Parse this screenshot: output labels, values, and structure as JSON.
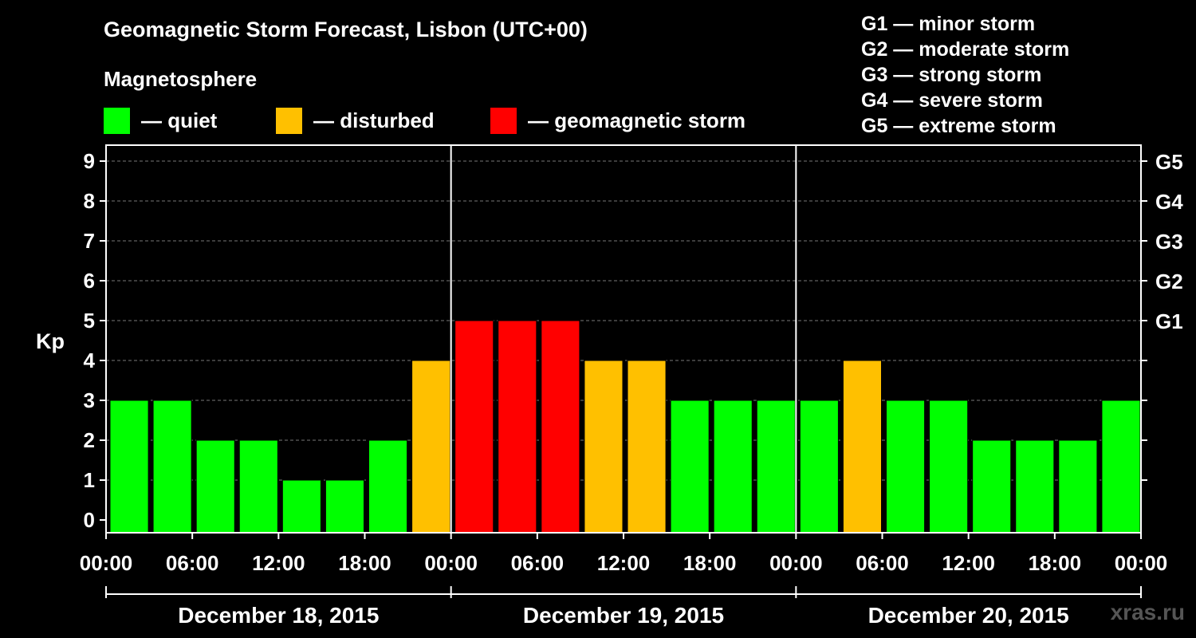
{
  "chart_data": {
    "type": "bar",
    "title": "Geomagnetic Storm Forecast, Lisbon (UTC+00)",
    "subtitle": "Magnetosphere",
    "ylabel": "Kp",
    "ylim": [
      0,
      9
    ],
    "yticks": [
      0,
      1,
      2,
      3,
      4,
      5,
      6,
      7,
      8,
      9
    ],
    "right_ticks": [
      {
        "kp": 5,
        "label": "G1"
      },
      {
        "kp": 6,
        "label": "G2"
      },
      {
        "kp": 7,
        "label": "G3"
      },
      {
        "kp": 8,
        "label": "G4"
      },
      {
        "kp": 9,
        "label": "G5"
      }
    ],
    "x_tick_labels": [
      "00:00",
      "06:00",
      "12:00",
      "18:00",
      "00:00",
      "06:00",
      "12:00",
      "18:00",
      "00:00",
      "06:00",
      "12:00",
      "18:00",
      "00:00"
    ],
    "days": [
      "December 18, 2015",
      "December 19, 2015",
      "December 20, 2015"
    ],
    "bar_interval_hours": 3,
    "values": [
      3,
      3,
      2,
      2,
      1,
      1,
      2,
      4,
      5,
      5,
      5,
      4,
      4,
      3,
      3,
      3,
      3,
      4,
      3,
      3,
      2,
      2,
      2,
      3
    ],
    "colors": {
      "quiet": "#00ff00",
      "disturbed": "#ffc000",
      "storm": "#ff0000"
    },
    "legend": [
      {
        "key": "quiet",
        "label": "— quiet"
      },
      {
        "key": "disturbed",
        "label": "— disturbed"
      },
      {
        "key": "storm",
        "label": "— geomagnetic storm"
      }
    ],
    "storm_scale": [
      "G1 — minor storm",
      "G2 — moderate storm",
      "G3 — strong storm",
      "G4 — severe storm",
      "G5 — extreme storm"
    ],
    "grid": true
  },
  "watermark": "xras.ru"
}
